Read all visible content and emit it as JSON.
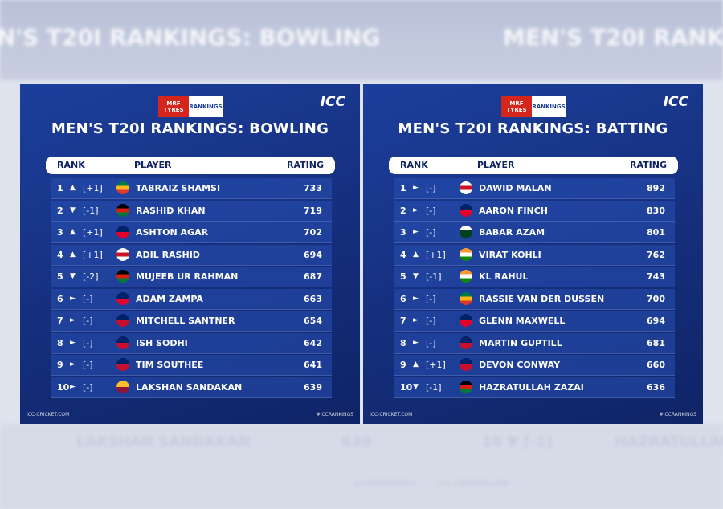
{
  "background": {
    "left_title": "N'S T20I RANKINGS: BOWLING",
    "right_title": "MEN'S T20I RANKI",
    "bottom_left_player": "LAKSHAN SANDAKAN",
    "bottom_left_rating": 639,
    "bottom_right_rank": "10 ▼ [-1]",
    "bottom_right_player": "HAZRATULLAH Z",
    "bottom_hashtag": "#ICCRANKINGS",
    "bottom_site": "ICC-CRICKET.COM"
  },
  "panels": [
    {
      "sponsor": "MRF TYRES",
      "badge": "RANKINGS",
      "logo": "ICC",
      "title": "MEN'S T20I RANKINGS: BOWLING",
      "headers": [
        "RANK",
        "PLAYER",
        "RATING"
      ],
      "rows": [
        {
          "rank": 1,
          "move": "▲",
          "change": "[+1]",
          "player": "TABRAIZ SHAMSI",
          "rating": 733,
          "flag": [
            "#007a4d",
            "#ffb612",
            "#de3831"
          ]
        },
        {
          "rank": 2,
          "move": "▼",
          "change": "[-1]",
          "player": "RASHID KHAN",
          "rating": 719,
          "flag": [
            "#000000",
            "#d32011",
            "#007a36"
          ]
        },
        {
          "rank": 3,
          "move": "▲",
          "change": "[+1]",
          "player": "ASHTON AGAR",
          "rating": 702,
          "flag": [
            "#012169",
            "#e4002b"
          ]
        },
        {
          "rank": 4,
          "move": "▲",
          "change": "[+1]",
          "player": "ADIL RASHID",
          "rating": 694,
          "flag": [
            "#ffffff",
            "#ce1124",
            "#ffffff"
          ]
        },
        {
          "rank": 5,
          "move": "▼",
          "change": "[-2]",
          "player": "MUJEEB UR RAHMAN",
          "rating": 687,
          "flag": [
            "#000000",
            "#d32011",
            "#007a36"
          ]
        },
        {
          "rank": 6,
          "move": "►",
          "change": "[-]",
          "player": "ADAM ZAMPA",
          "rating": 663,
          "flag": [
            "#012169",
            "#e4002b"
          ]
        },
        {
          "rank": 7,
          "move": "►",
          "change": "[-]",
          "player": "MITCHELL SANTNER",
          "rating": 654,
          "flag": [
            "#012169",
            "#c8102e"
          ]
        },
        {
          "rank": 8,
          "move": "►",
          "change": "[-]",
          "player": "ISH SODHI",
          "rating": 642,
          "flag": [
            "#012169",
            "#c8102e"
          ]
        },
        {
          "rank": 9,
          "move": "►",
          "change": "[-]",
          "player": "TIM SOUTHEE",
          "rating": 641,
          "flag": [
            "#012169",
            "#c8102e"
          ]
        },
        {
          "rank": 10,
          "move": "►",
          "change": "[-]",
          "player": "LAKSHAN SANDAKAN",
          "rating": 639,
          "flag": [
            "#ffbe29",
            "#8d153a"
          ]
        }
      ],
      "footer_left": "ICC-CRICKET.COM",
      "footer_right": "#ICCRANKINGS"
    },
    {
      "sponsor": "MRF TYRES",
      "badge": "RANKINGS",
      "logo": "ICC",
      "title": "MEN'S T20I RANKINGS: BATTING",
      "headers": [
        "RANK",
        "PLAYER",
        "RATING"
      ],
      "rows": [
        {
          "rank": 1,
          "move": "►",
          "change": "[-]",
          "player": "DAWID MALAN",
          "rating": 892,
          "flag": [
            "#ffffff",
            "#ce1124",
            "#ffffff"
          ]
        },
        {
          "rank": 2,
          "move": "►",
          "change": "[-]",
          "player": "AARON FINCH",
          "rating": 830,
          "flag": [
            "#012169",
            "#e4002b"
          ]
        },
        {
          "rank": 3,
          "move": "►",
          "change": "[-]",
          "player": "BABAR AZAM",
          "rating": 801,
          "flag": [
            "#ffffff",
            "#01411c",
            "#01411c"
          ]
        },
        {
          "rank": 4,
          "move": "▲",
          "change": "[+1]",
          "player": "VIRAT KOHLI",
          "rating": 762,
          "flag": [
            "#ff9933",
            "#ffffff",
            "#138808"
          ]
        },
        {
          "rank": 5,
          "move": "▼",
          "change": "[-1]",
          "player": "KL RAHUL",
          "rating": 743,
          "flag": [
            "#ff9933",
            "#ffffff",
            "#138808"
          ]
        },
        {
          "rank": 6,
          "move": "►",
          "change": "[-]",
          "player": "RASSIE VAN DER DUSSEN",
          "rating": 700,
          "flag": [
            "#007a4d",
            "#ffb612",
            "#de3831"
          ]
        },
        {
          "rank": 7,
          "move": "►",
          "change": "[-]",
          "player": "GLENN MAXWELL",
          "rating": 694,
          "flag": [
            "#012169",
            "#e4002b"
          ]
        },
        {
          "rank": 8,
          "move": "►",
          "change": "[-]",
          "player": "MARTIN GUPTILL",
          "rating": 681,
          "flag": [
            "#012169",
            "#c8102e"
          ]
        },
        {
          "rank": 9,
          "move": "▲",
          "change": "[+1]",
          "player": "DEVON CONWAY",
          "rating": 660,
          "flag": [
            "#012169",
            "#c8102e"
          ]
        },
        {
          "rank": 10,
          "move": "▼",
          "change": "[-1]",
          "player": "HAZRATULLAH ZAZAI",
          "rating": 636,
          "flag": [
            "#000000",
            "#d32011",
            "#007a36"
          ]
        }
      ],
      "footer_left": "ICC-CRICKET.COM",
      "footer_right": "#ICCRANKINGS"
    }
  ]
}
